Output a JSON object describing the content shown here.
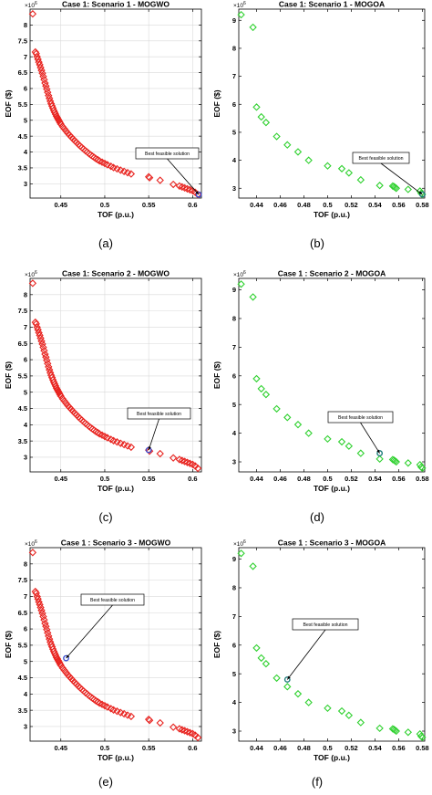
{
  "figure": {
    "captions": [
      "(a)",
      "(b)",
      "(c)",
      "(d)",
      "(e)",
      "(f)"
    ]
  },
  "chart_data": [
    {
      "type": "scatter",
      "title": "Case 1: Scenario 1 - MOGWO",
      "xlabel": "TOF (p.u.)",
      "ylabel": "EOF ($)",
      "y_multiplier": "×10^6",
      "xlim": [
        0.415,
        0.61
      ],
      "ylim": [
        2.55,
        8.5
      ],
      "xticks": [
        0.45,
        0.5,
        0.55,
        0.6
      ],
      "yticks": [
        3,
        3.5,
        4,
        4.5,
        5,
        5.5,
        6,
        6.5,
        7,
        7.5,
        8
      ],
      "grid": true,
      "marker": "diamond",
      "color": "#e8231f",
      "best_color": "#3b4fd1",
      "series": [
        {
          "x": [
            0.418,
            0.421,
            0.422,
            0.423,
            0.424,
            0.425,
            0.426,
            0.427,
            0.428,
            0.429,
            0.43,
            0.431,
            0.432,
            0.433,
            0.434,
            0.435,
            0.436,
            0.437,
            0.438,
            0.439,
            0.44,
            0.441,
            0.442,
            0.443,
            0.444,
            0.445,
            0.446,
            0.447,
            0.448,
            0.449,
            0.45,
            0.452,
            0.454,
            0.456,
            0.458,
            0.46,
            0.462,
            0.464,
            0.466,
            0.468,
            0.47,
            0.472,
            0.474,
            0.476,
            0.478,
            0.48,
            0.482,
            0.484,
            0.486,
            0.488,
            0.49,
            0.492,
            0.494,
            0.497,
            0.5,
            0.503,
            0.507,
            0.51,
            0.514,
            0.518,
            0.522,
            0.526,
            0.53,
            0.55,
            0.551,
            0.563,
            0.578,
            0.585,
            0.588,
            0.591,
            0.594,
            0.597,
            0.6,
            0.603,
            0.606
          ],
          "y": [
            8.35,
            7.15,
            7.1,
            7.0,
            6.92,
            6.83,
            6.75,
            6.66,
            6.57,
            6.48,
            6.38,
            6.28,
            6.17,
            6.08,
            5.98,
            5.88,
            5.78,
            5.69,
            5.6,
            5.52,
            5.45,
            5.38,
            5.31,
            5.25,
            5.19,
            5.13,
            5.08,
            5.03,
            4.98,
            4.93,
            4.88,
            4.8,
            4.73,
            4.66,
            4.59,
            4.53,
            4.47,
            4.41,
            4.35,
            4.3,
            4.24,
            4.19,
            4.14,
            4.09,
            4.04,
            4.0,
            3.95,
            3.91,
            3.87,
            3.83,
            3.79,
            3.76,
            3.72,
            3.68,
            3.64,
            3.6,
            3.55,
            3.51,
            3.47,
            3.43,
            3.39,
            3.35,
            3.31,
            3.22,
            3.19,
            3.11,
            2.98,
            2.93,
            2.9,
            2.87,
            2.84,
            2.81,
            2.78,
            2.73,
            2.66
          ]
        }
      ],
      "best": {
        "x": 0.607,
        "y": 2.66
      },
      "annotation": "Best feasible solution"
    },
    {
      "type": "scatter",
      "title": "Case 1: Scenario 1 - MOGOA",
      "xlabel": "TOF (p.u.)",
      "ylabel": "EOF ($)",
      "y_multiplier": "×10^6",
      "xlim": [
        0.425,
        0.582
      ],
      "ylim": [
        2.65,
        9.4
      ],
      "xticks": [
        0.44,
        0.46,
        0.48,
        0.5,
        0.52,
        0.54,
        0.56,
        0.58
      ],
      "yticks": [
        3,
        4,
        5,
        6,
        7,
        8,
        9
      ],
      "grid": false,
      "marker": "diamond",
      "color": "#2fd12f",
      "best_color": "#1c7a7a",
      "series": [
        {
          "x": [
            0.427,
            0.437,
            0.44,
            0.444,
            0.448,
            0.457,
            0.466,
            0.475,
            0.484,
            0.5,
            0.512,
            0.518,
            0.528,
            0.544,
            0.555,
            0.556,
            0.557,
            0.558,
            0.568,
            0.578,
            0.579,
            0.58
          ],
          "y": [
            9.2,
            8.75,
            5.9,
            5.55,
            5.35,
            4.85,
            4.55,
            4.3,
            4.0,
            3.8,
            3.7,
            3.55,
            3.3,
            3.1,
            3.08,
            3.06,
            3.03,
            3.0,
            2.96,
            2.9,
            2.82,
            2.78
          ]
        }
      ],
      "best": {
        "x": 0.58,
        "y": 2.78
      },
      "annotation": "Best feasible solution"
    },
    {
      "type": "scatter",
      "title": "Case 1: Scenario 2 - MOGWO",
      "xlabel": "TOF (p.u.)",
      "ylabel": "EOF ($)",
      "y_multiplier": "×10^6",
      "xlim": [
        0.415,
        0.61
      ],
      "ylim": [
        2.55,
        8.5
      ],
      "xticks": [
        0.45,
        0.5,
        0.55,
        0.6
      ],
      "yticks": [
        3,
        3.5,
        4,
        4.5,
        5,
        5.5,
        6,
        6.5,
        7,
        7.5,
        8
      ],
      "grid": true,
      "marker": "diamond",
      "color": "#e8231f",
      "best_color": "#3b4fd1",
      "series": [
        {
          "x": [
            0.418,
            0.421,
            0.422,
            0.423,
            0.424,
            0.425,
            0.426,
            0.427,
            0.428,
            0.429,
            0.43,
            0.431,
            0.432,
            0.433,
            0.434,
            0.435,
            0.436,
            0.437,
            0.438,
            0.439,
            0.44,
            0.441,
            0.442,
            0.443,
            0.444,
            0.445,
            0.446,
            0.447,
            0.448,
            0.449,
            0.45,
            0.452,
            0.454,
            0.456,
            0.458,
            0.46,
            0.462,
            0.464,
            0.466,
            0.468,
            0.47,
            0.472,
            0.474,
            0.476,
            0.478,
            0.48,
            0.482,
            0.484,
            0.486,
            0.488,
            0.49,
            0.492,
            0.494,
            0.497,
            0.5,
            0.503,
            0.507,
            0.51,
            0.514,
            0.518,
            0.522,
            0.526,
            0.53,
            0.55,
            0.551,
            0.563,
            0.578,
            0.585,
            0.588,
            0.591,
            0.594,
            0.597,
            0.6,
            0.603,
            0.606
          ],
          "y": [
            8.35,
            7.15,
            7.1,
            7.0,
            6.92,
            6.83,
            6.75,
            6.66,
            6.57,
            6.48,
            6.38,
            6.28,
            6.17,
            6.08,
            5.98,
            5.88,
            5.78,
            5.69,
            5.6,
            5.52,
            5.45,
            5.38,
            5.31,
            5.25,
            5.19,
            5.13,
            5.08,
            5.03,
            4.98,
            4.93,
            4.88,
            4.8,
            4.73,
            4.66,
            4.59,
            4.53,
            4.47,
            4.41,
            4.35,
            4.3,
            4.24,
            4.19,
            4.14,
            4.09,
            4.04,
            4.0,
            3.95,
            3.91,
            3.87,
            3.83,
            3.79,
            3.76,
            3.72,
            3.68,
            3.64,
            3.6,
            3.55,
            3.51,
            3.47,
            3.43,
            3.39,
            3.35,
            3.31,
            3.22,
            3.19,
            3.11,
            2.98,
            2.93,
            2.9,
            2.87,
            2.84,
            2.81,
            2.78,
            2.73,
            2.66
          ]
        }
      ],
      "best": {
        "x": 0.55,
        "y": 3.22
      },
      "annotation": "Best feasible solution"
    },
    {
      "type": "scatter",
      "title": "Case 1 : Scenario 2 - MOGOA",
      "xlabel": "TOF (p.u.)",
      "ylabel": "EOF ($)",
      "y_multiplier": "×10^6",
      "xlim": [
        0.425,
        0.582
      ],
      "ylim": [
        2.65,
        9.4
      ],
      "xticks": [
        0.44,
        0.46,
        0.48,
        0.5,
        0.52,
        0.54,
        0.56,
        0.58
      ],
      "yticks": [
        3,
        4,
        5,
        6,
        7,
        8,
        9
      ],
      "grid": false,
      "marker": "diamond",
      "color": "#2fd12f",
      "best_color": "#1c7a7a",
      "series": [
        {
          "x": [
            0.427,
            0.437,
            0.44,
            0.444,
            0.448,
            0.457,
            0.466,
            0.475,
            0.484,
            0.5,
            0.512,
            0.518,
            0.528,
            0.544,
            0.555,
            0.556,
            0.557,
            0.558,
            0.568,
            0.578,
            0.579,
            0.58
          ],
          "y": [
            9.2,
            8.75,
            5.9,
            5.55,
            5.35,
            4.85,
            4.55,
            4.3,
            4.0,
            3.8,
            3.7,
            3.55,
            3.3,
            3.1,
            3.08,
            3.06,
            3.03,
            3.0,
            2.96,
            2.9,
            2.82,
            2.78
          ]
        }
      ],
      "best": {
        "x": 0.544,
        "y": 3.3
      },
      "annotation": "Best feasible solution"
    },
    {
      "type": "scatter",
      "title": "Case 1 : Scenario 3 - MOGWO",
      "xlabel": "TOF (p.u.)",
      "ylabel": "EOF ($)",
      "y_multiplier": "×10^6",
      "xlim": [
        0.415,
        0.61
      ],
      "ylim": [
        2.55,
        8.5
      ],
      "xticks": [
        0.45,
        0.5,
        0.55,
        0.6
      ],
      "yticks": [
        3,
        3.5,
        4,
        4.5,
        5,
        5.5,
        6,
        6.5,
        7,
        7.5,
        8
      ],
      "grid": true,
      "marker": "diamond",
      "color": "#e8231f",
      "best_color": "#3b4fd1",
      "series": [
        {
          "x": [
            0.418,
            0.421,
            0.422,
            0.423,
            0.424,
            0.425,
            0.426,
            0.427,
            0.428,
            0.429,
            0.43,
            0.431,
            0.432,
            0.433,
            0.434,
            0.435,
            0.436,
            0.437,
            0.438,
            0.439,
            0.44,
            0.441,
            0.442,
            0.443,
            0.444,
            0.445,
            0.446,
            0.447,
            0.448,
            0.449,
            0.45,
            0.452,
            0.454,
            0.456,
            0.458,
            0.46,
            0.462,
            0.464,
            0.466,
            0.468,
            0.47,
            0.472,
            0.474,
            0.476,
            0.478,
            0.48,
            0.482,
            0.484,
            0.486,
            0.488,
            0.49,
            0.492,
            0.494,
            0.497,
            0.5,
            0.503,
            0.507,
            0.51,
            0.514,
            0.518,
            0.522,
            0.526,
            0.53,
            0.55,
            0.551,
            0.563,
            0.578,
            0.585,
            0.588,
            0.591,
            0.594,
            0.597,
            0.6,
            0.603,
            0.606
          ],
          "y": [
            8.35,
            7.15,
            7.1,
            7.0,
            6.92,
            6.83,
            6.75,
            6.66,
            6.57,
            6.48,
            6.38,
            6.28,
            6.17,
            6.08,
            5.98,
            5.88,
            5.78,
            5.69,
            5.6,
            5.52,
            5.45,
            5.38,
            5.31,
            5.25,
            5.19,
            5.13,
            5.08,
            5.03,
            4.98,
            4.93,
            4.88,
            4.8,
            4.73,
            4.66,
            4.59,
            4.53,
            4.47,
            4.41,
            4.35,
            4.3,
            4.24,
            4.19,
            4.14,
            4.09,
            4.04,
            4.0,
            3.95,
            3.91,
            3.87,
            3.83,
            3.79,
            3.76,
            3.72,
            3.68,
            3.64,
            3.6,
            3.55,
            3.51,
            3.47,
            3.43,
            3.39,
            3.35,
            3.31,
            3.22,
            3.19,
            3.11,
            2.98,
            2.93,
            2.9,
            2.87,
            2.84,
            2.81,
            2.78,
            2.73,
            2.66
          ]
        }
      ],
      "best": {
        "x": 0.456,
        "y": 5.1
      },
      "annotation": "Best feasible solution"
    },
    {
      "type": "scatter",
      "title": "Case 1 : Scenario 3 - MOGOA",
      "xlabel": "TOF (p.u.)",
      "ylabel": "EOF ($)",
      "y_multiplier": "×10^6",
      "xlim": [
        0.425,
        0.582
      ],
      "ylim": [
        2.65,
        9.4
      ],
      "xticks": [
        0.44,
        0.46,
        0.48,
        0.5,
        0.52,
        0.54,
        0.56,
        0.58
      ],
      "yticks": [
        3,
        4,
        5,
        6,
        7,
        8,
        9
      ],
      "grid": false,
      "marker": "diamond",
      "color": "#2fd12f",
      "best_color": "#1c7a7a",
      "series": [
        {
          "x": [
            0.427,
            0.437,
            0.44,
            0.444,
            0.448,
            0.457,
            0.466,
            0.475,
            0.484,
            0.5,
            0.512,
            0.518,
            0.528,
            0.544,
            0.555,
            0.556,
            0.557,
            0.558,
            0.568,
            0.578,
            0.579,
            0.58
          ],
          "y": [
            9.2,
            8.75,
            5.9,
            5.55,
            5.35,
            4.85,
            4.55,
            4.3,
            4.0,
            3.8,
            3.7,
            3.55,
            3.3,
            3.1,
            3.08,
            3.06,
            3.03,
            3.0,
            2.96,
            2.9,
            2.82,
            2.78
          ]
        }
      ],
      "best": {
        "x": 0.466,
        "y": 4.8
      },
      "annotation": "Best feasible solution"
    }
  ]
}
